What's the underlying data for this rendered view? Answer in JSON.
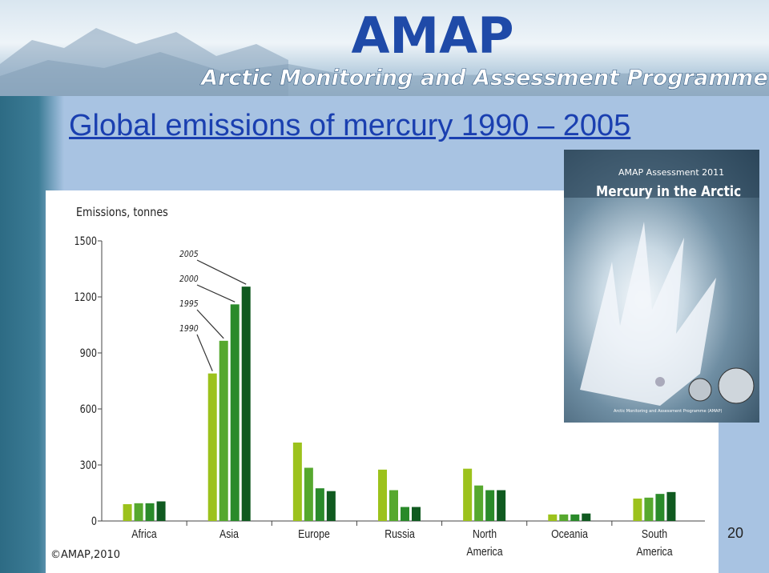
{
  "banner": {
    "logo": "AMAP",
    "subtitle": "Arctic Monitoring and Assessment Programme"
  },
  "slide_title": "Global emissions of mercury 1990 – 2005",
  "cover": {
    "kicker": "AMAP Assessment 2011",
    "title": "Mercury in the Arctic",
    "publisher": "Arctic Monitoring and Assessment Programme (AMAP)"
  },
  "copyright": "©AMAP,2010",
  "page_number": "20",
  "chart_data": {
    "type": "bar",
    "y_label": "Emissions, tonnes",
    "categories": [
      "Africa",
      "Asia",
      "Europe",
      "Russia",
      "North America",
      "Oceania",
      "South America"
    ],
    "series": [
      {
        "name": "1990",
        "color": "#9cc21c",
        "values": [
          90,
          790,
          420,
          275,
          280,
          35,
          120
        ]
      },
      {
        "name": "1995",
        "color": "#56a82e",
        "values": [
          95,
          965,
          285,
          165,
          190,
          35,
          125
        ]
      },
      {
        "name": "2000",
        "color": "#2a8a2a",
        "values": [
          95,
          1160,
          175,
          75,
          165,
          35,
          145
        ]
      },
      {
        "name": "2005",
        "color": "#105a20",
        "values": [
          105,
          1255,
          160,
          75,
          165,
          40,
          155
        ]
      }
    ],
    "ylim": [
      0,
      1500
    ],
    "yticks": [
      0,
      300,
      600,
      900,
      1200,
      1500
    ],
    "grid": false
  }
}
